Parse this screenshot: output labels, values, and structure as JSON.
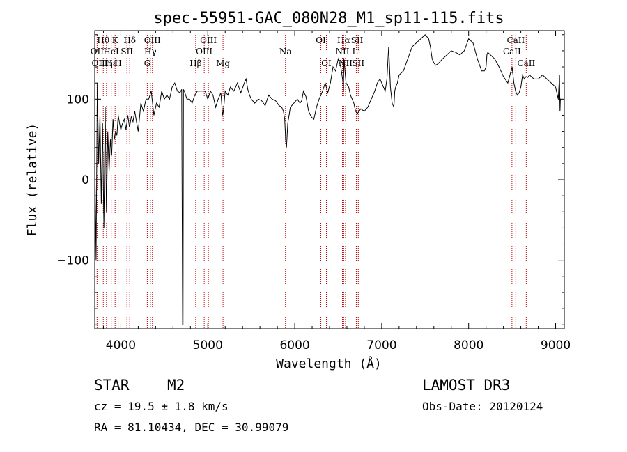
{
  "chart_data": {
    "type": "line",
    "title": "spec-55951-GAC_080N28_M1_sp11-115.fits",
    "xlabel": "Wavelength (Å)",
    "ylabel": "Flux (relative)",
    "xlim": [
      3700,
      9100
    ],
    "ylim": [
      -185,
      185
    ],
    "xticks": [
      4000,
      5000,
      6000,
      7000,
      8000,
      9000
    ],
    "yticks": [
      -100,
      0,
      100
    ],
    "ytick_labels": [
      "−100",
      "0",
      "100"
    ],
    "series": [
      {
        "x": [
          3700,
          3715,
          3730,
          3745,
          3760,
          3775,
          3790,
          3805,
          3820,
          3835,
          3850,
          3865,
          3880,
          3895,
          3910,
          3925,
          3940,
          3955,
          3970,
          3985,
          4000,
          4020,
          4040,
          4060,
          4080,
          4100,
          4120,
          4140,
          4160,
          4180,
          4200,
          4230,
          4260,
          4290,
          4320,
          4350,
          4380,
          4410,
          4440,
          4470,
          4500,
          4530,
          4560,
          4590,
          4620,
          4650,
          4680,
          4700,
          4710,
          4715,
          4720,
          4730,
          4760,
          4790,
          4820,
          4850,
          4880,
          4910,
          4940,
          4970,
          5000,
          5030,
          5060,
          5090,
          5120,
          5150,
          5170,
          5180,
          5200,
          5230,
          5260,
          5300,
          5340,
          5380,
          5420,
          5440,
          5460,
          5480,
          5500,
          5540,
          5580,
          5620,
          5660,
          5700,
          5740,
          5780,
          5820,
          5850,
          5870,
          5885,
          5895,
          5905,
          5920,
          5950,
          5990,
          6030,
          6060,
          6080,
          6100,
          6130,
          6160,
          6190,
          6220,
          6250,
          6280,
          6300,
          6320,
          6350,
          6380,
          6410,
          6440,
          6470,
          6500,
          6530,
          6550,
          6560,
          6565,
          6570,
          6590,
          6620,
          6640,
          6660,
          6680,
          6700,
          6720,
          6760,
          6800,
          6840,
          6880,
          6920,
          6950,
          6980,
          7000,
          7020,
          7040,
          7060,
          7080,
          7100,
          7120,
          7140,
          7150,
          7160,
          7180,
          7200,
          7250,
          7300,
          7350,
          7400,
          7450,
          7500,
          7540,
          7560,
          7580,
          7600,
          7620,
          7650,
          7700,
          7750,
          7800,
          7850,
          7900,
          7950,
          8000,
          8050,
          8100,
          8150,
          8180,
          8200,
          8210,
          8220,
          8250,
          8300,
          8350,
          8400,
          8450,
          8500,
          8520,
          8540,
          8560,
          8580,
          8600,
          8620,
          8640,
          8660,
          8680,
          8700,
          8750,
          8800,
          8850,
          8900,
          8950,
          9000,
          9030,
          9045,
          9050,
          9055,
          9060
        ],
        "y": [
          30,
          -100,
          120,
          20,
          80,
          -30,
          70,
          -60,
          90,
          -40,
          60,
          10,
          50,
          30,
          75,
          50,
          60,
          55,
          80,
          70,
          62,
          70,
          75,
          62,
          80,
          65,
          78,
          72,
          85,
          72,
          60,
          95,
          85,
          100,
          100,
          110,
          80,
          95,
          90,
          110,
          100,
          105,
          100,
          115,
          120,
          110,
          108,
          112,
          -180,
          -180,
          112,
          110,
          100,
          100,
          95,
          105,
          110,
          110,
          110,
          110,
          100,
          110,
          105,
          90,
          100,
          108,
          80,
          85,
          110,
          105,
          115,
          110,
          120,
          108,
          120,
          125,
          112,
          105,
          100,
          95,
          100,
          98,
          92,
          105,
          100,
          98,
          92,
          90,
          85,
          75,
          50,
          40,
          70,
          90,
          95,
          100,
          95,
          98,
          110,
          103,
          85,
          78,
          75,
          90,
          100,
          105,
          110,
          120,
          108,
          120,
          140,
          135,
          150,
          140,
          125,
          110,
          150,
          145,
          120,
          115,
          105,
          100,
          95,
          85,
          82,
          88,
          85,
          90,
          100,
          110,
          120,
          125,
          120,
          115,
          110,
          125,
          165,
          115,
          95,
          90,
          110,
          115,
          120,
          130,
          135,
          150,
          165,
          170,
          175,
          180,
          175,
          165,
          150,
          145,
          142,
          144,
          150,
          155,
          160,
          158,
          155,
          160,
          175,
          170,
          150,
          135,
          135,
          140,
          155,
          158,
          155,
          150,
          140,
          128,
          120,
          140,
          120,
          110,
          105,
          108,
          115,
          130,
          125,
          128,
          127,
          130,
          125,
          125,
          130,
          125,
          120,
          115,
          100,
          130,
          85,
          100,
          100
        ]
      }
    ],
    "lines": [
      {
        "label": "Hθ",
        "x": 3798,
        "row": 1
      },
      {
        "label": "OII",
        "x": 3727,
        "row": 2
      },
      {
        "label": "OIII",
        "x": 3760,
        "row": 3
      },
      {
        "label": "K",
        "x": 3934,
        "row": 1
      },
      {
        "label": "HeI",
        "x": 3889,
        "row": 2
      },
      {
        "label": "Hη",
        "x": 3835,
        "row": 3
      },
      {
        "label": "Hε",
        "x": 3889,
        "row": 3
      },
      {
        "label": "SII",
        "x": 4070,
        "row": 2
      },
      {
        "label": "H",
        "x": 3969,
        "row": 3
      },
      {
        "label": "Hδ",
        "x": 4102,
        "row": 1
      },
      {
        "label": "OIII",
        "x": 4363,
        "row": 1
      },
      {
        "label": "Hγ",
        "x": 4340,
        "row": 2
      },
      {
        "label": "G",
        "x": 4304,
        "row": 3
      },
      {
        "label": "Hβ",
        "x": 4861,
        "row": 3
      },
      {
        "label": "OIII",
        "x": 5007,
        "row": 1
      },
      {
        "label": "OIII",
        "x": 4959,
        "row": 2
      },
      {
        "label": "Mg",
        "x": 5175,
        "row": 3
      },
      {
        "label": "Na",
        "x": 5893,
        "row": 2
      },
      {
        "label": "OI",
        "x": 6300,
        "row": 1
      },
      {
        "label": "OI",
        "x": 6364,
        "row": 3
      },
      {
        "label": "Hα",
        "x": 6563,
        "row": 1
      },
      {
        "label": "NII",
        "x": 6548,
        "row": 2
      },
      {
        "label": "NII",
        "x": 6584,
        "row": 3
      },
      {
        "label": "SII",
        "x": 6717,
        "row": 1
      },
      {
        "label": "Li",
        "x": 6708,
        "row": 2
      },
      {
        "label": "SII",
        "x": 6731,
        "row": 3
      },
      {
        "label": "CaII",
        "x": 8542,
        "row": 1
      },
      {
        "label": "CaII",
        "x": 8498,
        "row": 2
      },
      {
        "label": "CaII",
        "x": 8662,
        "row": 3
      }
    ]
  },
  "info": {
    "object_class": "STAR",
    "subclass": "M2",
    "survey": "LAMOST DR3",
    "cz": "cz = 19.5 ± 1.8 km/s",
    "obs_date": "Obs-Date: 20120124",
    "coords": "RA =  81.10434, DEC =  30.99079"
  }
}
